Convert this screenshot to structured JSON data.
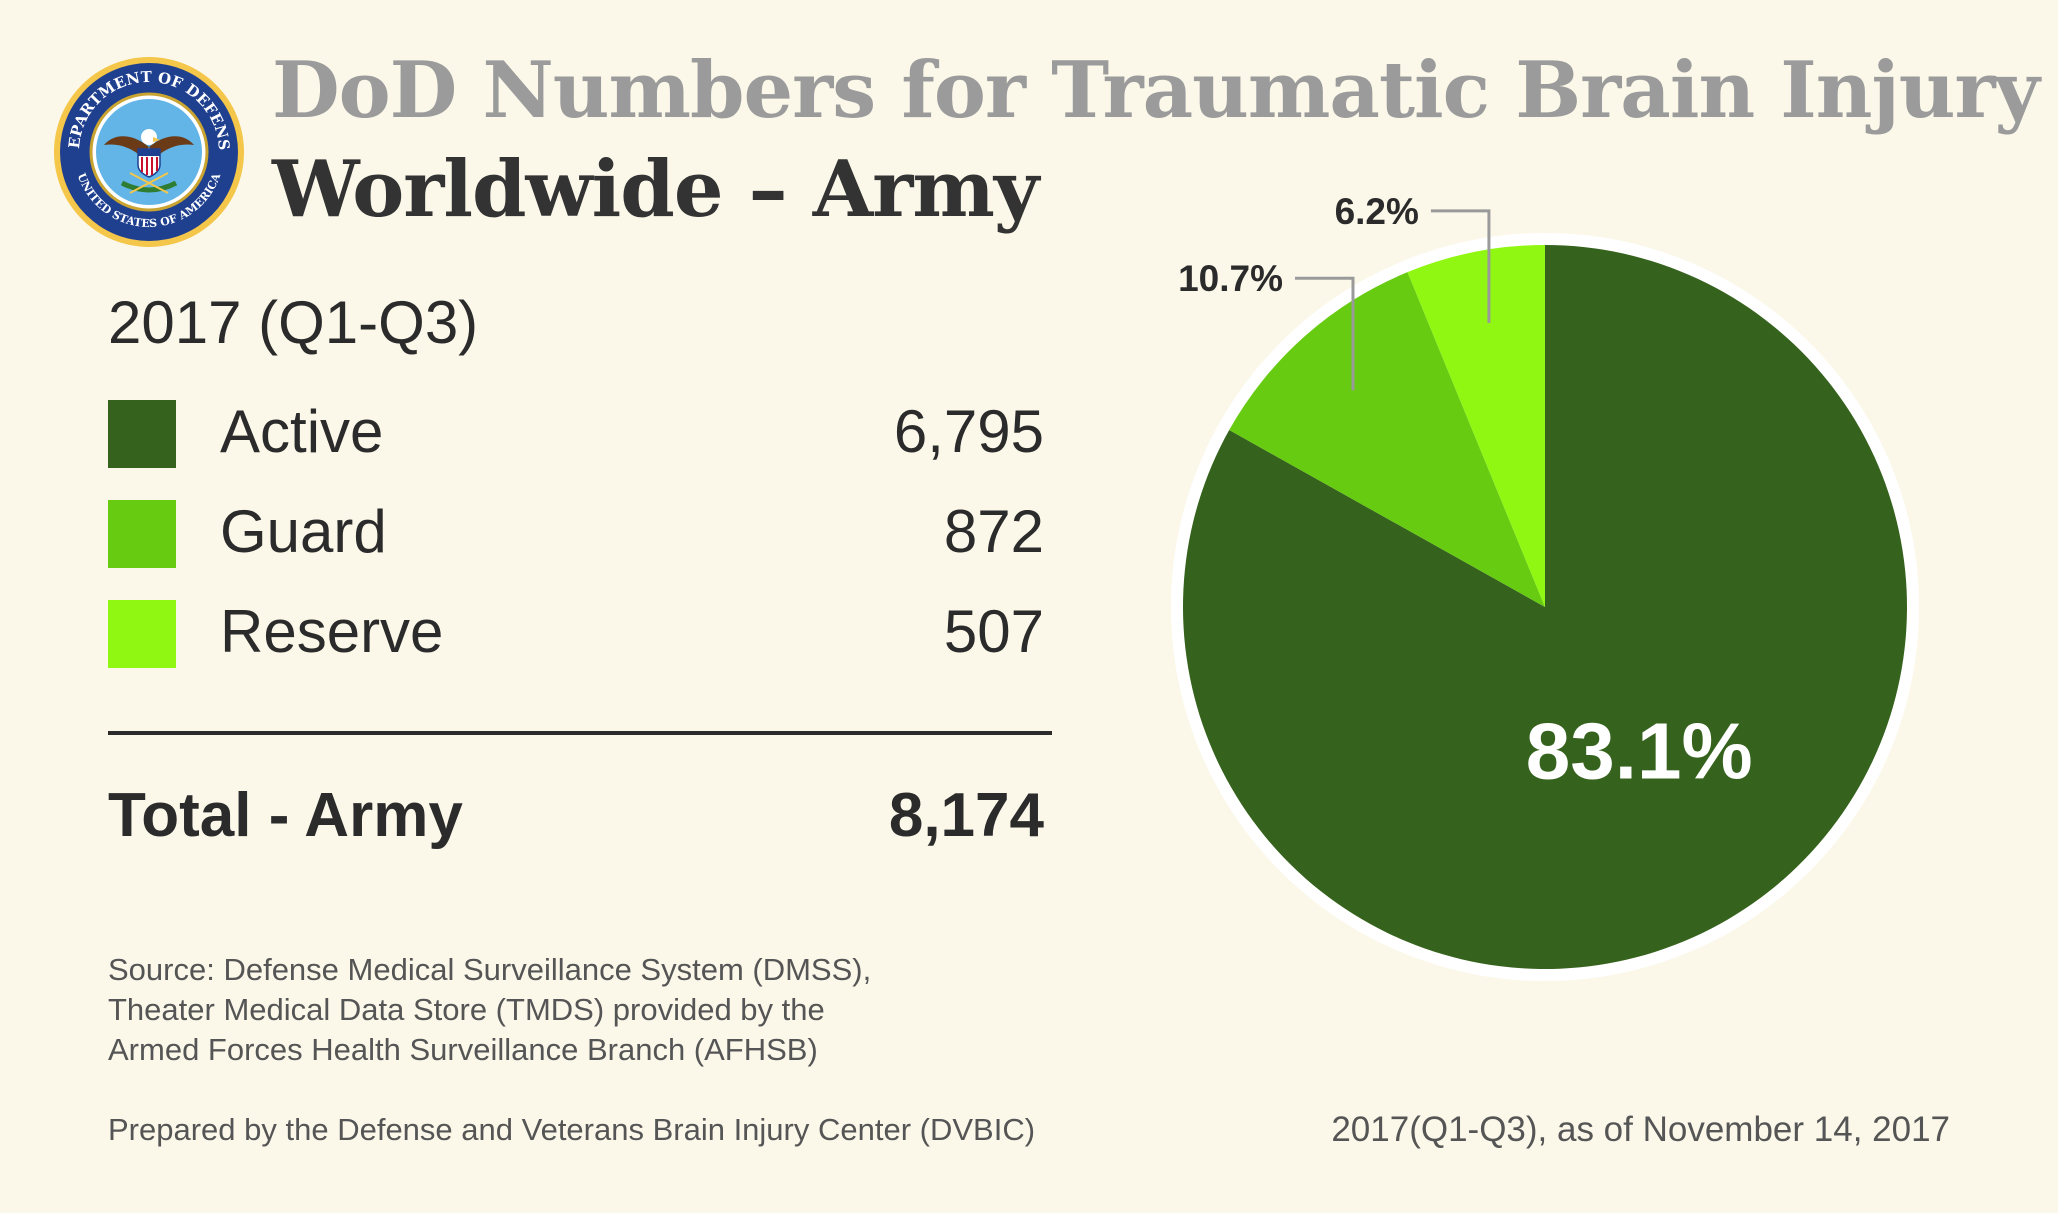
{
  "header": {
    "title_line1": "DoD Numbers for Traumatic Brain Injury",
    "title_line2": "Worldwide – Army",
    "seal": {
      "top_text": "DEPARTMENT OF DEFENSE",
      "bottom_text": "UNITED STATES OF AMERICA"
    }
  },
  "legend": {
    "period": "2017 (Q1-Q3)",
    "items": [
      {
        "label": "Active",
        "value": "6,795",
        "color": "#35621c"
      },
      {
        "label": "Guard",
        "value": "872",
        "color": "#67cb12"
      },
      {
        "label": "Reserve",
        "value": "507",
        "color": "#8ff712"
      }
    ],
    "total_label": "Total - Army",
    "total_value": "8,174"
  },
  "chart_data": {
    "type": "pie",
    "slices": [
      {
        "label": "Active",
        "value": 6795,
        "percent_label": "83.1%",
        "color": "#35621c"
      },
      {
        "label": "Guard",
        "value": 872,
        "percent_label": "10.7%",
        "color": "#67cb12"
      },
      {
        "label": "Reserve",
        "value": 507,
        "percent_label": "6.2%",
        "color": "#8ff712"
      }
    ]
  },
  "footer": {
    "source_lines": [
      "Source: Defense Medical Surveillance System (DMSS),",
      "Theater Medical Data Store (TMDS) provided by the",
      "Armed Forces Health Surveillance Branch (AFHSB)"
    ],
    "prepared_by": "Prepared by the Defense and Veterans Brain Injury Center (DVBIC)",
    "as_of": "2017(Q1-Q3), as of November 14, 2017"
  }
}
